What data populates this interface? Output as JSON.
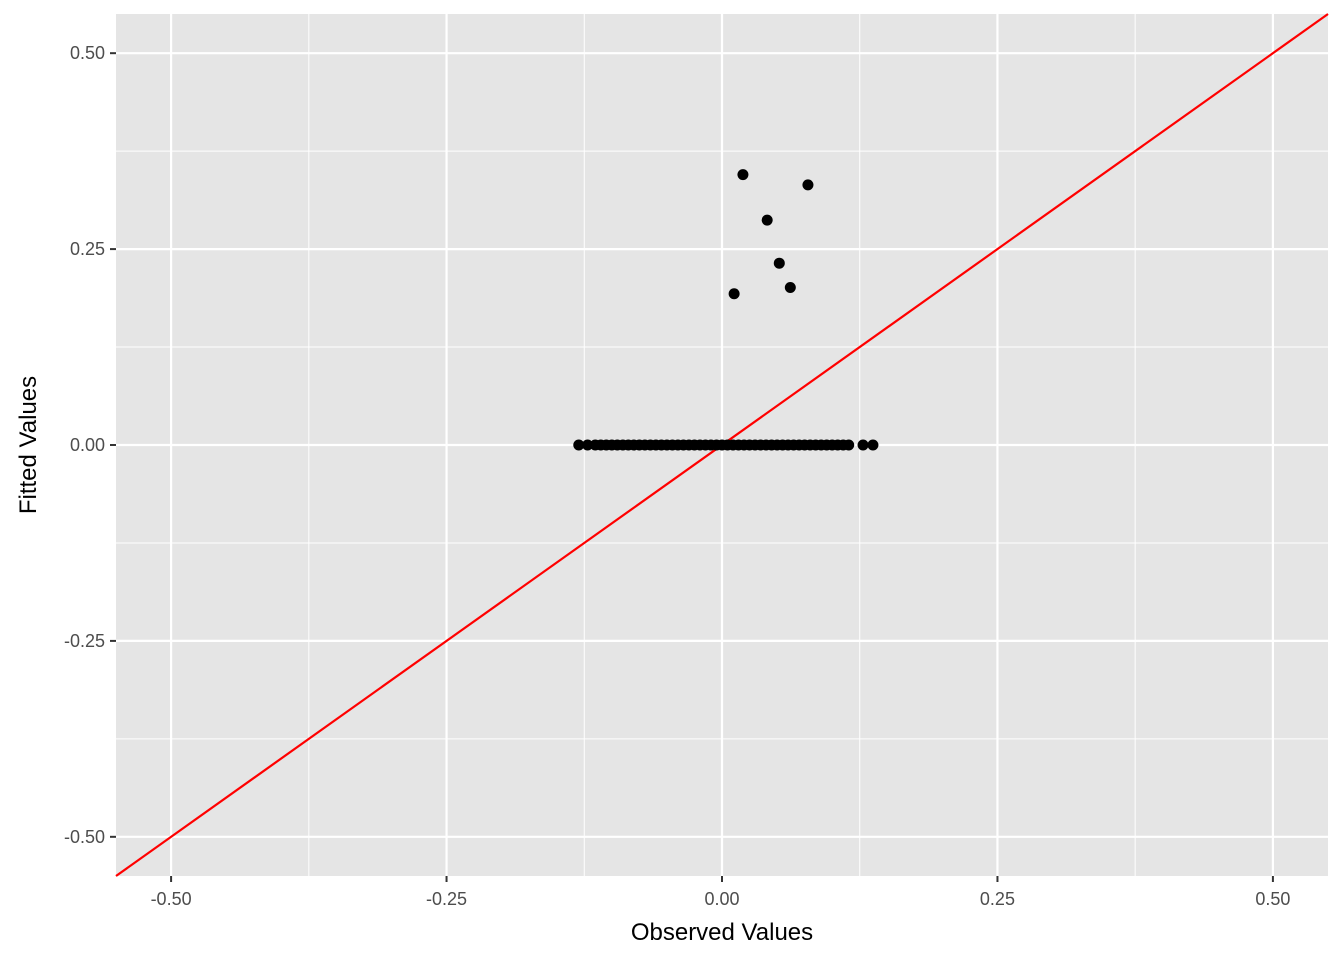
{
  "chart_data": {
    "type": "scatter",
    "xlabel": "Observed Values",
    "ylabel": "Fitted Values",
    "xlim": [
      -0.55,
      0.55
    ],
    "ylim": [
      -0.55,
      0.55
    ],
    "x_ticks": [
      -0.5,
      -0.25,
      0.0,
      0.25,
      0.5
    ],
    "x_tick_labels": [
      "-0.50",
      "-0.25",
      "0.00",
      "0.25",
      "0.50"
    ],
    "y_ticks": [
      -0.5,
      -0.25,
      0.0,
      0.25,
      0.5
    ],
    "y_tick_labels": [
      "-0.50",
      "-0.25",
      "0.00",
      "0.25",
      "0.50"
    ],
    "grid": true,
    "panel_background": "#e5e5e5",
    "grid_color": "#ffffff",
    "point_color": "#000000",
    "reference_line": {
      "slope": 1,
      "intercept": 0,
      "color": "#ff0000"
    },
    "series": [
      {
        "points": [
          {
            "x": 0.019,
            "y": 0.345
          },
          {
            "x": 0.078,
            "y": 0.332
          },
          {
            "x": 0.041,
            "y": 0.287
          },
          {
            "x": 0.052,
            "y": 0.232
          },
          {
            "x": 0.062,
            "y": 0.201
          },
          {
            "x": 0.011,
            "y": 0.193
          },
          {
            "x": -0.13,
            "y": 0.0
          },
          {
            "x": -0.122,
            "y": 0.0
          },
          {
            "x": -0.115,
            "y": 0.0
          },
          {
            "x": -0.11,
            "y": 0.0
          },
          {
            "x": -0.105,
            "y": 0.0
          },
          {
            "x": -0.1,
            "y": 0.0
          },
          {
            "x": -0.095,
            "y": 0.0
          },
          {
            "x": -0.09,
            "y": 0.0
          },
          {
            "x": -0.085,
            "y": 0.0
          },
          {
            "x": -0.08,
            "y": 0.0
          },
          {
            "x": -0.075,
            "y": 0.0
          },
          {
            "x": -0.07,
            "y": 0.0
          },
          {
            "x": -0.065,
            "y": 0.0
          },
          {
            "x": -0.06,
            "y": 0.0
          },
          {
            "x": -0.055,
            "y": 0.0
          },
          {
            "x": -0.05,
            "y": 0.0
          },
          {
            "x": -0.045,
            "y": 0.0
          },
          {
            "x": -0.04,
            "y": 0.0
          },
          {
            "x": -0.035,
            "y": 0.0
          },
          {
            "x": -0.03,
            "y": 0.0
          },
          {
            "x": -0.025,
            "y": 0.0
          },
          {
            "x": -0.02,
            "y": 0.0
          },
          {
            "x": -0.015,
            "y": 0.0
          },
          {
            "x": -0.01,
            "y": 0.0
          },
          {
            "x": -0.005,
            "y": 0.0
          },
          {
            "x": 0.0,
            "y": 0.0
          },
          {
            "x": 0.005,
            "y": 0.0
          },
          {
            "x": 0.01,
            "y": 0.0
          },
          {
            "x": 0.015,
            "y": 0.0
          },
          {
            "x": 0.02,
            "y": 0.0
          },
          {
            "x": 0.025,
            "y": 0.0
          },
          {
            "x": 0.03,
            "y": 0.0
          },
          {
            "x": 0.035,
            "y": 0.0
          },
          {
            "x": 0.04,
            "y": 0.0
          },
          {
            "x": 0.045,
            "y": 0.0
          },
          {
            "x": 0.05,
            "y": 0.0
          },
          {
            "x": 0.055,
            "y": 0.0
          },
          {
            "x": 0.06,
            "y": 0.0
          },
          {
            "x": 0.065,
            "y": 0.0
          },
          {
            "x": 0.07,
            "y": 0.0
          },
          {
            "x": 0.075,
            "y": 0.0
          },
          {
            "x": 0.08,
            "y": 0.0
          },
          {
            "x": 0.085,
            "y": 0.0
          },
          {
            "x": 0.09,
            "y": 0.0
          },
          {
            "x": 0.095,
            "y": 0.0
          },
          {
            "x": 0.1,
            "y": 0.0
          },
          {
            "x": 0.105,
            "y": 0.0
          },
          {
            "x": 0.11,
            "y": 0.0
          },
          {
            "x": 0.115,
            "y": 0.0
          },
          {
            "x": 0.128,
            "y": 0.0
          },
          {
            "x": 0.137,
            "y": 0.0
          }
        ]
      }
    ]
  }
}
